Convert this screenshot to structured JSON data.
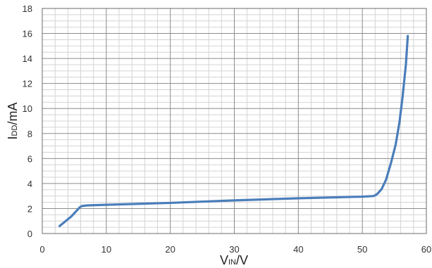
{
  "chart_data": {
    "type": "line",
    "xlabel": {
      "main": "V",
      "sub": "IN",
      "suffix": "/V"
    },
    "ylabel": {
      "main": "I",
      "sub": "DD",
      "suffix": "/mA"
    },
    "xlim": [
      0,
      60
    ],
    "ylim": [
      0,
      18
    ],
    "x_major_ticks": [
      0,
      10,
      20,
      30,
      40,
      50,
      60
    ],
    "y_major_ticks": [
      0,
      2,
      4,
      6,
      8,
      10,
      12,
      14,
      16,
      18
    ],
    "x_minor_step": 2,
    "y_minor_step": 0.5,
    "grid": true,
    "legend": "none",
    "series": [
      {
        "color": "#4a7ebb",
        "x": [
          2.7,
          4.5,
          5.9,
          6.2,
          7,
          10,
          20,
          30,
          40,
          50,
          51.8,
          52.3,
          53,
          53.7,
          54.5,
          55.2,
          55.8,
          56.3,
          56.8,
          57.1
        ],
        "y": [
          0.6,
          1.35,
          2.12,
          2.2,
          2.25,
          2.3,
          2.45,
          2.65,
          2.82,
          2.95,
          3.0,
          3.15,
          3.55,
          4.3,
          5.7,
          7.1,
          8.9,
          11.0,
          13.5,
          15.8
        ]
      }
    ]
  }
}
